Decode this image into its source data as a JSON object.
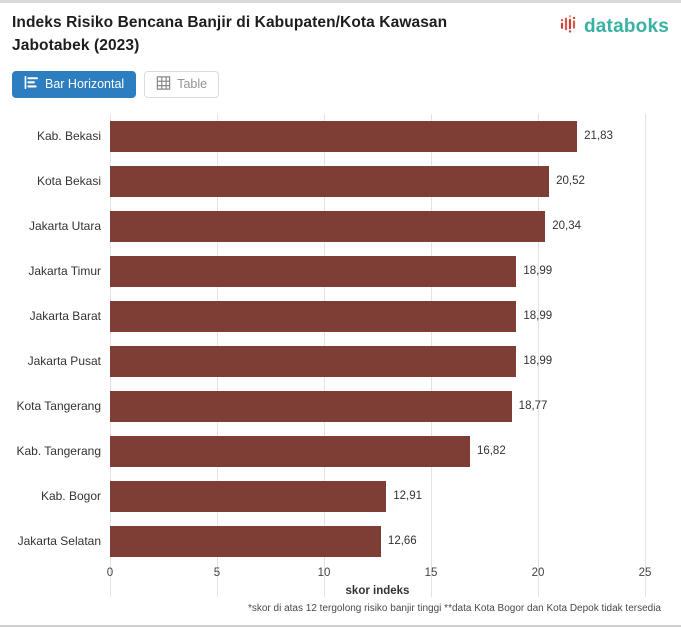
{
  "header": {
    "title": "Indeks Risiko Bencana Banjir di Kabupaten/Kota Kawasan Jabotabek (2023)",
    "brand": {
      "name": "databoks",
      "text_color": "#38b2a1",
      "icon": "databoks-bars-icon",
      "icon_colors": [
        "#c9423b",
        "#e2574a",
        "#ef8d66"
      ]
    }
  },
  "toolbar": {
    "buttons": [
      {
        "label": "Bar Horizontal",
        "icon": "bar-horizontal-icon",
        "active": true
      },
      {
        "label": "Table",
        "icon": "table-icon",
        "active": false
      }
    ],
    "active_color": "#2d7dc1"
  },
  "chart_data": {
    "type": "bar",
    "orientation": "horizontal",
    "title": "Indeks Risiko Bencana Banjir di Kabupaten/Kota Kawasan Jabotabek (2023)",
    "categories": [
      "Kab. Bekasi",
      "Kota Bekasi",
      "Jakarta Utara",
      "Jakarta Timur",
      "Jakarta Barat",
      "Jakarta Pusat",
      "Kota Tangerang",
      "Kab. Tangerang",
      "Kab. Bogor",
      "Jakarta Selatan"
    ],
    "values": [
      21.83,
      20.52,
      20.34,
      18.99,
      18.99,
      18.99,
      18.77,
      16.82,
      12.91,
      12.66
    ],
    "value_labels": [
      "21,83",
      "20,52",
      "20,34",
      "18,99",
      "18,99",
      "18,99",
      "18,77",
      "16,82",
      "12,91",
      "12,66"
    ],
    "xlabel": "skor indeks",
    "xlim": [
      0,
      25
    ],
    "xticks": [
      0,
      5,
      10,
      15,
      20,
      25
    ],
    "bar_color": "#7e3e36",
    "grid": true,
    "legend": false
  },
  "footnote": "*skor di atas 12 tergolong risiko banjir tinggi **data Kota Bogor dan Kota Depok tidak tersedia"
}
